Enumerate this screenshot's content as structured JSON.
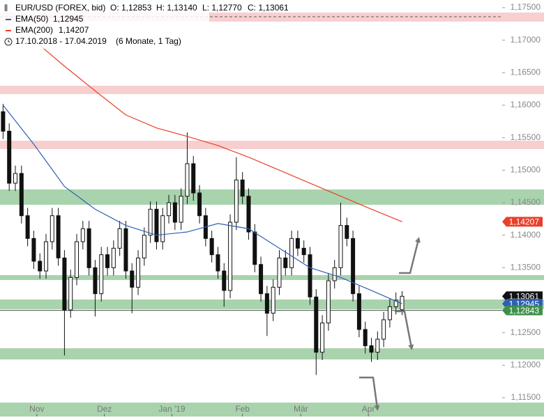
{
  "chart_data": {
    "type": "candlestick",
    "header": {
      "title": "EUR/USD (FOREX, bid)",
      "ohlc": [
        "O: 1,12853",
        "H: 1,13140",
        "L: 1,12770",
        "C: 1,13061"
      ],
      "range": "17.10.2018 - 17.04.2019",
      "period": "(6 Monate, 1 Tag)"
    },
    "xlim": [
      -1,
      162.6
    ],
    "ylim": [
      1.11211,
      1.17618
    ],
    "xticks": [
      {
        "value": 11,
        "label": "Nov"
      },
      {
        "value": 33,
        "label": "Dez"
      },
      {
        "value": 55,
        "label": "Jan '19"
      },
      {
        "value": 78,
        "label": "Feb"
      },
      {
        "value": 97,
        "label": "Mär"
      },
      {
        "value": 119,
        "label": "Apr"
      }
    ],
    "yticks": [
      {
        "value": 1.175,
        "label": "1,17500"
      },
      {
        "value": 1.17,
        "label": "1,17000"
      },
      {
        "value": 1.165,
        "label": "1,16500"
      },
      {
        "value": 1.16,
        "label": "1,16000"
      },
      {
        "value": 1.155,
        "label": "1,15500"
      },
      {
        "value": 1.15,
        "label": "1,15000"
      },
      {
        "value": 1.145,
        "label": "1,14500"
      },
      {
        "value": 1.14,
        "label": "1,14000"
      },
      {
        "value": 1.135,
        "label": "1,13500"
      },
      {
        "value": 1.13,
        "label": "1,13000"
      },
      {
        "value": 1.125,
        "label": "1,12500"
      },
      {
        "value": 1.12,
        "label": "1,12000"
      },
      {
        "value": 1.115,
        "label": "1,11500"
      }
    ],
    "zones": [
      {
        "low": 1.17286,
        "high": 1.17425,
        "color": "#f7cfcf"
      },
      {
        "low": 1.16171,
        "high": 1.163,
        "color": "#f7cfcf"
      },
      {
        "low": 1.15325,
        "high": 1.15454,
        "color": "#f7cfcf"
      },
      {
        "low": 1.14468,
        "high": 1.14704,
        "color": "#a9d3ad"
      },
      {
        "low": 1.13311,
        "high": 1.13386,
        "color": "#a9d3ad"
      },
      {
        "low": 1.12861,
        "high": 1.13011,
        "color": "#a9d3ad"
      },
      {
        "low": 1.12089,
        "high": 1.12261,
        "color": "#a9d3ad"
      },
      {
        "low": 1.112,
        "high": 1.11425,
        "color": "#a9d3ad"
      }
    ],
    "reference_lines": [
      {
        "value": 1.17361,
        "style": "dashed"
      },
      {
        "value": 1.12843,
        "style": "solid"
      }
    ],
    "candles": {
      "up_color": "#ffffff",
      "down_color": "#111111",
      "x": [
        0,
        2,
        4,
        6,
        8,
        10,
        12,
        14,
        16,
        18,
        20,
        22,
        24,
        26,
        28,
        30,
        32,
        34,
        36,
        38,
        40,
        42,
        44,
        46,
        48,
        50,
        52,
        54,
        56,
        58,
        60,
        62,
        64,
        66,
        68,
        70,
        72,
        74,
        76,
        78,
        80,
        82,
        84,
        86,
        88,
        90,
        92,
        94,
        96,
        98,
        100,
        102,
        104,
        106,
        108,
        110,
        112,
        114,
        116,
        118,
        120,
        122,
        124,
        126,
        128,
        130
      ],
      "open": [
        1.159,
        1.156,
        1.148,
        1.1495,
        1.143,
        1.1395,
        1.136,
        1.1345,
        1.139,
        1.143,
        1.1365,
        1.1285,
        1.1335,
        1.139,
        1.141,
        1.135,
        1.131,
        1.137,
        1.135,
        1.138,
        1.141,
        1.1345,
        1.132,
        1.1365,
        1.14,
        1.144,
        1.139,
        1.143,
        1.145,
        1.142,
        1.146,
        1.151,
        1.1465,
        1.143,
        1.1395,
        1.137,
        1.1345,
        1.1315,
        1.142,
        1.1485,
        1.146,
        1.1405,
        1.1355,
        1.131,
        1.128,
        1.132,
        1.1365,
        1.135,
        1.1395,
        1.138,
        1.137,
        1.1305,
        1.122,
        1.1265,
        1.133,
        1.135,
        1.1415,
        1.1395,
        1.131,
        1.1255,
        1.123,
        1.122,
        1.124,
        1.127,
        1.129,
        1.12853
      ],
      "high": [
        1.1602,
        1.1572,
        1.1507,
        1.1507,
        1.1442,
        1.1407,
        1.1372,
        1.1402,
        1.1442,
        1.1442,
        1.1377,
        1.1347,
        1.1402,
        1.1422,
        1.1422,
        1.1362,
        1.1382,
        1.1382,
        1.1392,
        1.1422,
        1.1422,
        1.1357,
        1.1377,
        1.1412,
        1.1452,
        1.1452,
        1.1442,
        1.1462,
        1.1462,
        1.1472,
        1.1558,
        1.1522,
        1.1477,
        1.1442,
        1.1407,
        1.1382,
        1.1357,
        1.1432,
        1.152,
        1.1497,
        1.1472,
        1.1417,
        1.1367,
        1.1322,
        1.1332,
        1.1377,
        1.1377,
        1.1407,
        1.1407,
        1.1392,
        1.1382,
        1.1317,
        1.1277,
        1.1342,
        1.1362,
        1.145,
        1.1427,
        1.1407,
        1.1322,
        1.1267,
        1.1242,
        1.1252,
        1.1282,
        1.1302,
        1.1312,
        1.1314
      ],
      "low": [
        1.1548,
        1.1468,
        1.1468,
        1.1418,
        1.1383,
        1.1348,
        1.1333,
        1.1333,
        1.1378,
        1.1353,
        1.1215,
        1.1273,
        1.1323,
        1.1378,
        1.1338,
        1.1275,
        1.1298,
        1.1338,
        1.1338,
        1.1368,
        1.1333,
        1.128,
        1.1308,
        1.1353,
        1.1388,
        1.1378,
        1.1378,
        1.1418,
        1.1408,
        1.1408,
        1.1448,
        1.1453,
        1.1418,
        1.1383,
        1.1358,
        1.1333,
        1.129,
        1.1303,
        1.1408,
        1.1448,
        1.1393,
        1.1343,
        1.1298,
        1.1245,
        1.1268,
        1.1308,
        1.1338,
        1.1338,
        1.1368,
        1.1358,
        1.1293,
        1.1185,
        1.1208,
        1.1253,
        1.1318,
        1.1338,
        1.1383,
        1.1298,
        1.1243,
        1.1218,
        1.1205,
        1.1208,
        1.1228,
        1.1258,
        1.1278,
        1.1277
      ],
      "close": [
        1.156,
        1.148,
        1.1495,
        1.143,
        1.1395,
        1.136,
        1.1345,
        1.139,
        1.143,
        1.1365,
        1.1285,
        1.1335,
        1.139,
        1.141,
        1.135,
        1.131,
        1.137,
        1.135,
        1.138,
        1.141,
        1.1345,
        1.132,
        1.1365,
        1.14,
        1.144,
        1.139,
        1.143,
        1.145,
        1.142,
        1.146,
        1.151,
        1.1465,
        1.143,
        1.1395,
        1.137,
        1.1345,
        1.1315,
        1.142,
        1.1485,
        1.146,
        1.1405,
        1.1355,
        1.131,
        1.128,
        1.132,
        1.1365,
        1.135,
        1.1395,
        1.138,
        1.137,
        1.1305,
        1.122,
        1.1265,
        1.133,
        1.135,
        1.1415,
        1.1395,
        1.131,
        1.1255,
        1.123,
        1.122,
        1.124,
        1.127,
        1.129,
        1.13,
        1.13061
      ]
    },
    "series": [
      {
        "name": "EMA(50)",
        "legend_value": "1,12945",
        "color": "#2f5fb3",
        "x": [
          0,
          10,
          20,
          30,
          40,
          50,
          60,
          70,
          80,
          90,
          100,
          110,
          120,
          130
        ],
        "values": [
          1.16,
          1.154,
          1.1475,
          1.144,
          1.1415,
          1.14,
          1.1405,
          1.1418,
          1.141,
          1.138,
          1.135,
          1.1335,
          1.1315,
          1.12945
        ]
      },
      {
        "name": "EMA(200)",
        "legend_value": "1,14207",
        "color": "#e8402a",
        "x": [
          10,
          20,
          30,
          40,
          50,
          60,
          70,
          80,
          90,
          100,
          110,
          120,
          130
        ],
        "values": [
          1.17,
          1.166,
          1.1622,
          1.1585,
          1.1565,
          1.1552,
          1.1538,
          1.152,
          1.15,
          1.148,
          1.146,
          1.144,
          1.14207
        ]
      }
    ],
    "price_tags": [
      {
        "value": 1.14207,
        "label": "1,14207",
        "color": "#e8402a"
      },
      {
        "value": 1.13061,
        "label": "1,13061",
        "color": "#111111"
      },
      {
        "value": 1.12945,
        "label": "1,12945",
        "color": "#2f5fb3"
      },
      {
        "value": 1.12843,
        "label": "1,12843",
        "color": "#3f8f4a"
      }
    ]
  }
}
